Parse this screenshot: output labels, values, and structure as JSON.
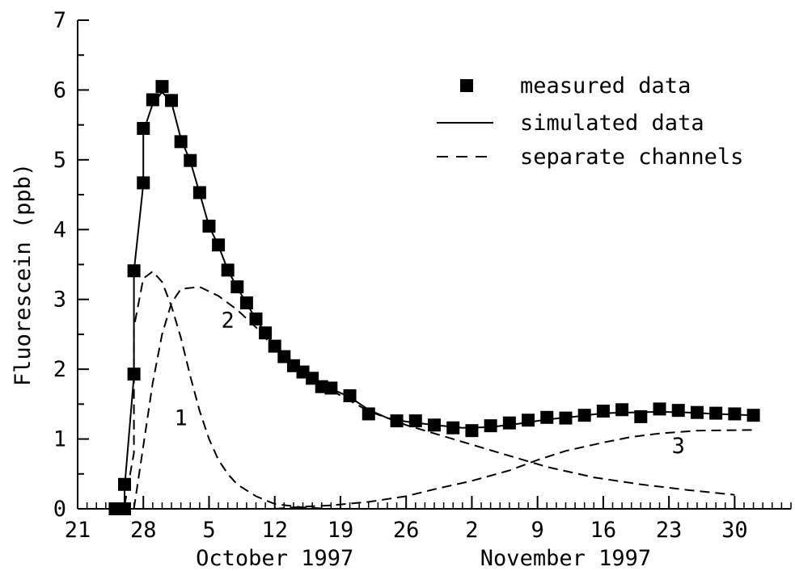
{
  "chart_data": {
    "type": "line",
    "xlabel": "",
    "ylabel": "Fluorescein (ppb)",
    "xlim": [
      "1997-09-21",
      "1997-12-06"
    ],
    "ylim": [
      0,
      7
    ],
    "yticks": [
      "0",
      "1",
      "2",
      "3",
      "4",
      "5",
      "6",
      "7"
    ],
    "xticks": [
      {
        "date": "1997-09-21",
        "label": "21"
      },
      {
        "date": "1997-09-28",
        "label": "28"
      },
      {
        "date": "1997-10-05",
        "label": "5"
      },
      {
        "date": "1997-10-12",
        "label": "12"
      },
      {
        "date": "1997-10-19",
        "label": "19"
      },
      {
        "date": "1997-10-26",
        "label": "26"
      },
      {
        "date": "1997-11-02",
        "label": "2"
      },
      {
        "date": "1997-11-09",
        "label": "9"
      },
      {
        "date": "1997-11-16",
        "label": "16"
      },
      {
        "date": "1997-11-23",
        "label": "23"
      },
      {
        "date": "1997-11-30",
        "label": "30"
      }
    ],
    "month_labels": [
      {
        "date": "1997-10-12",
        "label": "October 1997"
      },
      {
        "date": "1997-11-12",
        "label": "November 1997"
      }
    ],
    "grid": false,
    "legend_position": "top-right",
    "legend": [
      {
        "label": "measured data",
        "style": "square-marker"
      },
      {
        "label": "simulated data",
        "style": "solid-line"
      },
      {
        "label": "separate channels",
        "style": "dashed-line"
      }
    ],
    "series": [
      {
        "name": "measured data",
        "style": "square-marker",
        "points": [
          [
            "1997-09-25",
            0.0
          ],
          [
            "1997-09-26",
            0.0
          ],
          [
            "1997-09-26",
            0.35
          ],
          [
            "1997-09-27",
            1.93
          ],
          [
            "1997-09-27",
            3.41
          ],
          [
            "1997-09-28",
            4.67
          ],
          [
            "1997-09-28",
            5.45
          ],
          [
            "1997-09-29",
            5.86
          ],
          [
            "1997-09-30",
            6.05
          ],
          [
            "1997-10-01",
            5.85
          ],
          [
            "1997-10-02",
            5.26
          ],
          [
            "1997-10-03",
            4.99
          ],
          [
            "1997-10-04",
            4.53
          ],
          [
            "1997-10-05",
            4.05
          ],
          [
            "1997-10-06",
            3.78
          ],
          [
            "1997-10-07",
            3.42
          ],
          [
            "1997-10-08",
            3.18
          ],
          [
            "1997-10-09",
            2.95
          ],
          [
            "1997-10-10",
            2.72
          ],
          [
            "1997-10-11",
            2.52
          ],
          [
            "1997-10-12",
            2.33
          ],
          [
            "1997-10-13",
            2.18
          ],
          [
            "1997-10-14",
            2.05
          ],
          [
            "1997-10-15",
            1.96
          ],
          [
            "1997-10-16",
            1.87
          ],
          [
            "1997-10-17",
            1.75
          ],
          [
            "1997-10-18",
            1.73
          ],
          [
            "1997-10-20",
            1.62
          ],
          [
            "1997-10-22",
            1.36
          ],
          [
            "1997-10-25",
            1.26
          ],
          [
            "1997-10-27",
            1.26
          ],
          [
            "1997-10-29",
            1.2
          ],
          [
            "1997-10-31",
            1.16
          ],
          [
            "1997-11-02",
            1.12
          ],
          [
            "1997-11-04",
            1.19
          ],
          [
            "1997-11-06",
            1.23
          ],
          [
            "1997-11-08",
            1.27
          ],
          [
            "1997-11-10",
            1.31
          ],
          [
            "1997-11-12",
            1.3
          ],
          [
            "1997-11-14",
            1.34
          ],
          [
            "1997-11-16",
            1.4
          ],
          [
            "1997-11-18",
            1.42
          ],
          [
            "1997-11-20",
            1.32
          ],
          [
            "1997-11-22",
            1.43
          ],
          [
            "1997-11-24",
            1.41
          ],
          [
            "1997-11-26",
            1.38
          ],
          [
            "1997-11-28",
            1.37
          ],
          [
            "1997-11-30",
            1.36
          ],
          [
            "1997-12-02",
            1.34
          ]
        ]
      },
      {
        "name": "simulated data",
        "style": "solid-line",
        "points": [
          [
            "1997-09-25",
            0.0
          ],
          [
            "1997-09-26",
            0.05
          ],
          [
            "1997-09-26",
            0.3
          ],
          [
            "1997-09-27",
            1.9
          ],
          [
            "1997-09-27",
            3.4
          ],
          [
            "1997-09-28",
            4.65
          ],
          [
            "1997-09-28",
            5.4
          ],
          [
            "1997-09-29",
            5.8
          ],
          [
            "1997-09-30",
            5.97
          ],
          [
            "1997-10-01",
            5.82
          ],
          [
            "1997-10-02",
            5.3
          ],
          [
            "1997-10-03",
            4.98
          ],
          [
            "1997-10-04",
            4.52
          ],
          [
            "1997-10-05",
            4.05
          ],
          [
            "1997-10-06",
            3.77
          ],
          [
            "1997-10-07",
            3.42
          ],
          [
            "1997-10-08",
            3.17
          ],
          [
            "1997-10-09",
            2.94
          ],
          [
            "1997-10-10",
            2.72
          ],
          [
            "1997-10-11",
            2.52
          ],
          [
            "1997-10-12",
            2.33
          ],
          [
            "1997-10-13",
            2.18
          ],
          [
            "1997-10-14",
            2.05
          ],
          [
            "1997-10-15",
            1.95
          ],
          [
            "1997-10-16",
            1.87
          ],
          [
            "1997-10-17",
            1.78
          ],
          [
            "1997-10-18",
            1.72
          ],
          [
            "1997-10-20",
            1.6
          ],
          [
            "1997-10-22",
            1.42
          ],
          [
            "1997-10-24",
            1.3
          ],
          [
            "1997-10-26",
            1.25
          ],
          [
            "1997-10-29",
            1.2
          ],
          [
            "1997-11-01",
            1.16
          ],
          [
            "1997-11-04",
            1.17
          ],
          [
            "1997-11-07",
            1.22
          ],
          [
            "1997-11-10",
            1.28
          ],
          [
            "1997-11-13",
            1.32
          ],
          [
            "1997-11-16",
            1.37
          ],
          [
            "1997-11-19",
            1.38
          ],
          [
            "1997-11-22",
            1.39
          ],
          [
            "1997-11-25",
            1.38
          ],
          [
            "1997-11-28",
            1.36
          ],
          [
            "1997-12-02",
            1.34
          ]
        ]
      },
      {
        "name": "1",
        "style": "dashed-line",
        "points": [
          [
            "1997-09-26",
            0.05
          ],
          [
            "1997-09-27",
            0.8
          ],
          [
            "1997-09-27",
            2.6
          ],
          [
            "1997-09-28",
            3.3
          ],
          [
            "1997-09-29",
            3.4
          ],
          [
            "1997-09-30",
            3.25
          ],
          [
            "1997-10-01",
            2.9
          ],
          [
            "1997-10-02",
            2.45
          ],
          [
            "1997-10-03",
            1.9
          ],
          [
            "1997-10-04",
            1.4
          ],
          [
            "1997-10-05",
            1.0
          ],
          [
            "1997-10-06",
            0.7
          ],
          [
            "1997-10-07",
            0.5
          ],
          [
            "1997-10-08",
            0.35
          ],
          [
            "1997-10-10",
            0.18
          ],
          [
            "1997-10-12",
            0.07
          ],
          [
            "1997-10-15",
            0.02
          ],
          [
            "1997-10-18",
            0.0
          ]
        ]
      },
      {
        "name": "2",
        "style": "dashed-line",
        "points": [
          [
            "1997-09-27",
            0.0
          ],
          [
            "1997-09-28",
            0.9
          ],
          [
            "1997-09-29",
            1.8
          ],
          [
            "1997-09-30",
            2.5
          ],
          [
            "1997-10-01",
            2.95
          ],
          [
            "1997-10-02",
            3.15
          ],
          [
            "1997-10-04",
            3.18
          ],
          [
            "1997-10-06",
            3.05
          ],
          [
            "1997-10-08",
            2.85
          ],
          [
            "1997-10-10",
            2.6
          ],
          [
            "1997-10-12",
            2.3
          ],
          [
            "1997-10-15",
            1.95
          ],
          [
            "1997-10-18",
            1.7
          ],
          [
            "1997-10-22",
            1.4
          ],
          [
            "1997-10-26",
            1.2
          ],
          [
            "1997-10-31",
            1.0
          ],
          [
            "1997-11-05",
            0.8
          ],
          [
            "1997-11-10",
            0.6
          ],
          [
            "1997-11-15",
            0.45
          ],
          [
            "1997-11-20",
            0.35
          ],
          [
            "1997-11-25",
            0.27
          ],
          [
            "1997-11-30",
            0.2
          ]
        ]
      },
      {
        "name": "3",
        "style": "dashed-line",
        "points": [
          [
            "1997-10-12",
            0.0
          ],
          [
            "1997-10-15",
            0.03
          ],
          [
            "1997-10-18",
            0.05
          ],
          [
            "1997-10-22",
            0.1
          ],
          [
            "1997-10-26",
            0.18
          ],
          [
            "1997-10-29",
            0.28
          ],
          [
            "1997-11-02",
            0.4
          ],
          [
            "1997-11-06",
            0.55
          ],
          [
            "1997-11-09",
            0.7
          ],
          [
            "1997-11-12",
            0.83
          ],
          [
            "1997-11-16",
            0.95
          ],
          [
            "1997-11-19",
            1.03
          ],
          [
            "1997-11-22",
            1.08
          ],
          [
            "1997-11-26",
            1.12
          ],
          [
            "1997-12-02",
            1.13
          ]
        ]
      }
    ],
    "annotations": [
      {
        "text": "1",
        "date": "1997-10-02",
        "y": 1.2
      },
      {
        "text": "2",
        "date": "1997-10-07",
        "y": 2.6
      },
      {
        "text": "3",
        "date": "1997-11-24",
        "y": 0.8
      }
    ]
  }
}
